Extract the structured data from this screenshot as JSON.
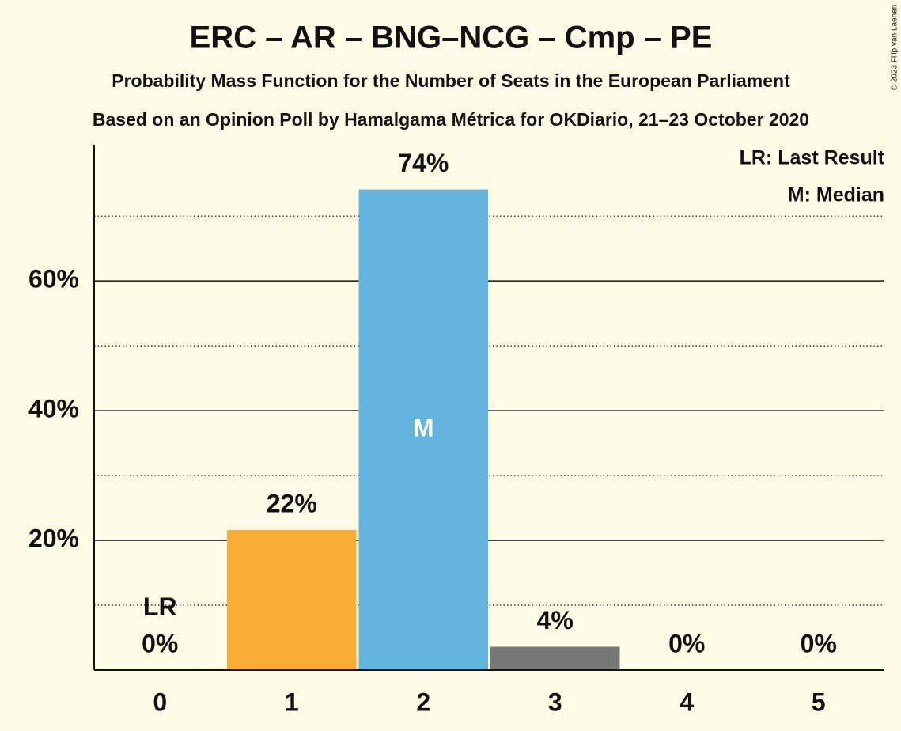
{
  "chart_data": {
    "type": "bar",
    "title": "ERC – AR – BNG–NCG – Cmp – PE",
    "subtitle": "Probability Mass Function for the Number of Seats in the European Parliament",
    "source": "Based on an Opinion Poll by Hamalgama Métrica for OKDiario, 21–23 October 2020",
    "copyright": "© 2023 Filip van Laenen",
    "categories": [
      "0",
      "1",
      "2",
      "3",
      "4",
      "5"
    ],
    "values": [
      0,
      21.6,
      74.1,
      3.6,
      0,
      0
    ],
    "value_labels": [
      "0%",
      "22%",
      "74%",
      "4%",
      "0%",
      "0%"
    ],
    "colors": [
      "#f9ad33",
      "#f9ad33",
      "#62b3de",
      "#777777",
      "#777777",
      "#777777"
    ],
    "ylim": [
      0,
      81
    ],
    "yticks": [
      {
        "value": 20,
        "label": "20%"
      },
      {
        "value": 40,
        "label": "40%"
      },
      {
        "value": 60,
        "label": "60%"
      }
    ],
    "minor_gridlines": [
      10,
      30,
      50,
      70
    ],
    "grid": true,
    "last_result": {
      "label": "LR",
      "category": "0"
    },
    "median": {
      "label": "M",
      "category": "2"
    },
    "legend": [
      "LR: Last Result",
      "M: Median"
    ],
    "legend_position": "top-right"
  }
}
